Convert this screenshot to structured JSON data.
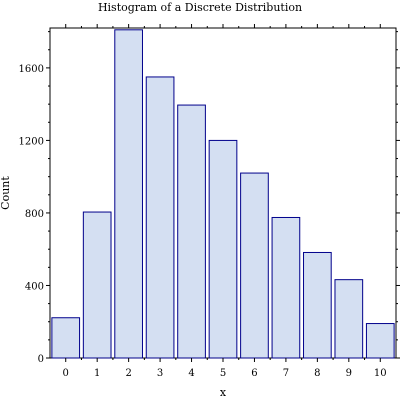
{
  "chart_data": {
    "type": "bar",
    "title": "Histogram of a Discrete Distribution",
    "xlabel": "x",
    "ylabel": "Count",
    "categories": [
      "0",
      "1",
      "2",
      "3",
      "4",
      "5",
      "6",
      "7",
      "8",
      "9",
      "10"
    ],
    "values": [
      222,
      805,
      1810,
      1550,
      1395,
      1200,
      1020,
      775,
      582,
      432,
      190
    ],
    "x_range": [
      -0.5,
      10.5
    ],
    "ylim": [
      0,
      1820
    ],
    "y_ticks": [
      0,
      400,
      800,
      1200,
      1600
    ],
    "grid": false,
    "legend": "none",
    "colors": {
      "bar_fill": "#d4dff2",
      "bar_stroke": "#00008b"
    }
  }
}
